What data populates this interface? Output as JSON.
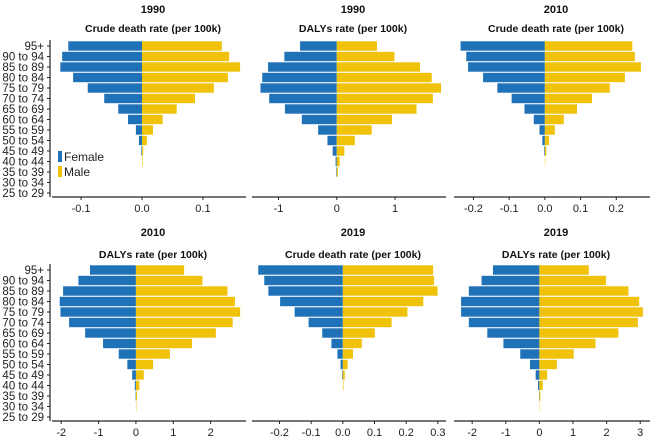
{
  "chart_data": {
    "type": "bar",
    "orientation": "horizontal-pyramid",
    "colors": {
      "Female": "#1f72b8",
      "Male": "#f0c20a"
    },
    "legend": {
      "entries": [
        "Female",
        "Male"
      ],
      "placement": "inside-bottom-left of first panel"
    },
    "grid": false,
    "categories": [
      "95+",
      "90 to 94",
      "85 to 89",
      "80 to 84",
      "75 to 79",
      "70 to 74",
      "65 to 69",
      "60 to 64",
      "55 to 59",
      "50 to 54",
      "45 to 49",
      "40 to 44",
      "35 to 39",
      "30 to 34",
      "25 to 29"
    ],
    "panels": [
      {
        "year": "1990",
        "title": "Crude death rate (per 100k)",
        "xlim": [
          -0.151,
          0.174
        ],
        "ticks": [
          -0.1,
          0.0,
          0.1
        ],
        "tick_labels": [
          "-0.1",
          "0.0",
          "0.1"
        ],
        "series": [
          {
            "name": "Female",
            "values": [
              0.121,
              0.131,
              0.134,
              0.113,
              0.089,
              0.062,
              0.039,
              0.023,
              0.01,
              0.005,
              0.001,
              0,
              0,
              0,
              0
            ]
          },
          {
            "name": "Male",
            "values": [
              0.131,
              0.143,
              0.161,
              0.141,
              0.118,
              0.087,
              0.057,
              0.034,
              0.018,
              0.008,
              0.002,
              0.001,
              0,
              0,
              0
            ]
          }
        ]
      },
      {
        "year": "1990",
        "title": "DALYs rate (per 100k)",
        "xlim": [
          -1.49,
          1.91
        ],
        "ticks": [
          -1,
          0,
          1
        ],
        "tick_labels": [
          "-1",
          "0",
          "1"
        ],
        "series": [
          {
            "name": "Female",
            "values": [
              0.63,
              0.9,
              1.18,
              1.28,
              1.31,
              1.16,
              0.89,
              0.6,
              0.32,
              0.16,
              0.07,
              0.02,
              0.01,
              0,
              0
            ]
          },
          {
            "name": "Male",
            "values": [
              0.69,
              0.99,
              1.43,
              1.63,
              1.79,
              1.65,
              1.37,
              0.95,
              0.6,
              0.31,
              0.13,
              0.05,
              0.02,
              0,
              0
            ]
          }
        ]
      },
      {
        "year": "2010",
        "title": "Crude death rate (per 100k)",
        "xlim": [
          -0.26,
          0.3
        ],
        "ticks": [
          -0.2,
          -0.1,
          0.0,
          0.1,
          0.2
        ],
        "tick_labels": [
          "-0.2",
          "-0.1",
          "0.0",
          "0.1",
          "0.2"
        ],
        "series": [
          {
            "name": "Female",
            "values": [
              0.236,
              0.22,
              0.215,
              0.173,
              0.133,
              0.093,
              0.057,
              0.031,
              0.015,
              0.007,
              0.002,
              0,
              0,
              0,
              0
            ]
          },
          {
            "name": "Male",
            "values": [
              0.245,
              0.252,
              0.269,
              0.224,
              0.182,
              0.132,
              0.09,
              0.053,
              0.028,
              0.012,
              0.004,
              0.001,
              0,
              0,
              0
            ]
          }
        ]
      },
      {
        "year": "2010",
        "title": "DALYs rate (per 100k)",
        "xlim": [
          -2.3,
          3.0
        ],
        "ticks": [
          -2,
          -1,
          0,
          1,
          2
        ],
        "tick_labels": [
          "-2",
          "-1",
          "0",
          "1",
          "2"
        ],
        "series": [
          {
            "name": "Female",
            "values": [
              1.23,
              1.54,
              1.95,
              2.04,
              2.02,
              1.79,
              1.36,
              0.88,
              0.46,
              0.23,
              0.1,
              0.03,
              0.01,
              0,
              0
            ]
          },
          {
            "name": "Male",
            "values": [
              1.29,
              1.78,
              2.45,
              2.65,
              2.79,
              2.59,
              2.14,
              1.5,
              0.91,
              0.46,
              0.21,
              0.09,
              0.03,
              0.01,
              0
            ]
          }
        ]
      },
      {
        "year": "2019",
        "title": "Crude death rate (per 100k)",
        "xlim": [
          -0.293,
          0.332
        ],
        "ticks": [
          -0.2,
          -0.1,
          0.0,
          0.1,
          0.2,
          0.3
        ],
        "tick_labels": [
          "-0.2",
          "-0.1",
          "0.0",
          "0.1",
          "0.2",
          "0.3"
        ],
        "series": [
          {
            "name": "Female",
            "values": [
              0.267,
              0.248,
              0.235,
              0.198,
              0.152,
              0.108,
              0.065,
              0.036,
              0.017,
              0.007,
              0.002,
              0,
              0,
              0,
              0
            ]
          },
          {
            "name": "Male",
            "values": [
              0.285,
              0.288,
              0.299,
              0.254,
              0.204,
              0.154,
              0.101,
              0.06,
              0.032,
              0.015,
              0.006,
              0.002,
              0,
              0,
              0
            ]
          }
        ]
      },
      {
        "year": "2019",
        "title": "DALYs rate (per 100k)",
        "xlim": [
          -2.6,
          3.35
        ],
        "ticks": [
          -2,
          -1,
          0,
          1,
          2,
          3
        ],
        "tick_labels": [
          "-2",
          "-1",
          "0",
          "1",
          "2",
          "3"
        ],
        "series": [
          {
            "name": "Female",
            "values": [
              1.38,
              1.72,
              2.1,
              2.33,
              2.33,
              2.1,
              1.55,
              1.07,
              0.57,
              0.28,
              0.11,
              0.04,
              0.01,
              0,
              0
            ]
          },
          {
            "name": "Male",
            "values": [
              1.47,
              1.98,
              2.65,
              2.97,
              3.08,
              2.93,
              2.35,
              1.67,
              1.02,
              0.52,
              0.23,
              0.1,
              0.03,
              0.01,
              0
            ]
          }
        ]
      }
    ]
  }
}
